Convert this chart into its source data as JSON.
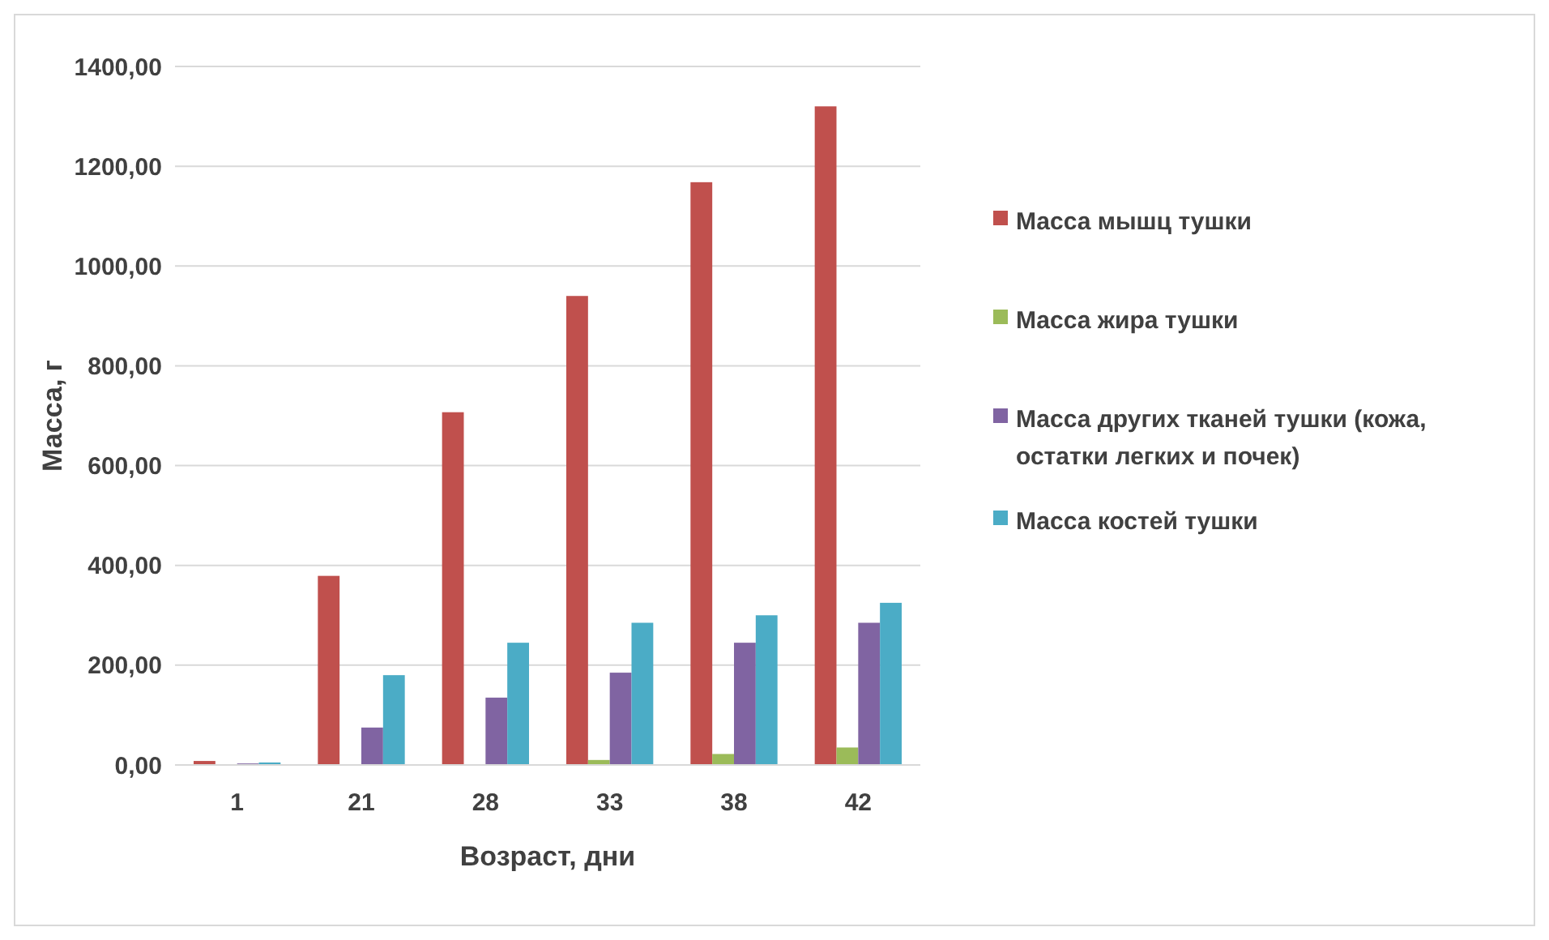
{
  "chart_data": {
    "type": "bar",
    "xlabel": "Возраст, дни",
    "ylabel": "Масса, г",
    "categories": [
      "1",
      "21",
      "28",
      "33",
      "38",
      "42"
    ],
    "series": [
      {
        "name": "Масса мышц тушки",
        "color": "#c0504d",
        "values": [
          8,
          379,
          707,
          940,
          1168,
          1320
        ]
      },
      {
        "name": "Масса жира тушки",
        "color": "#9bbb59",
        "values": [
          null,
          0,
          null,
          10,
          22,
          35
        ]
      },
      {
        "name": "Масса других тканей тушки (кожа, остатки легких и почек)",
        "color": "#8064a2",
        "values": [
          3,
          75,
          135,
          185,
          245,
          285
        ]
      },
      {
        "name": "Масса костей тушки",
        "color": "#4bacc6",
        "values": [
          5,
          180,
          245,
          285,
          300,
          325
        ]
      }
    ],
    "ylim": [
      0,
      1400
    ],
    "yticks": [
      {
        "value": 0,
        "label": "0,00"
      },
      {
        "value": 200,
        "label": "200,00"
      },
      {
        "value": 400,
        "label": "400,00"
      },
      {
        "value": 600,
        "label": "600,00"
      },
      {
        "value": 800,
        "label": "800,00"
      },
      {
        "value": 1000,
        "label": "1000,00"
      },
      {
        "value": 1200,
        "label": "1200,00"
      },
      {
        "value": 1400,
        "label": "1400,00"
      }
    ],
    "grid": "y",
    "legend": "right"
  }
}
